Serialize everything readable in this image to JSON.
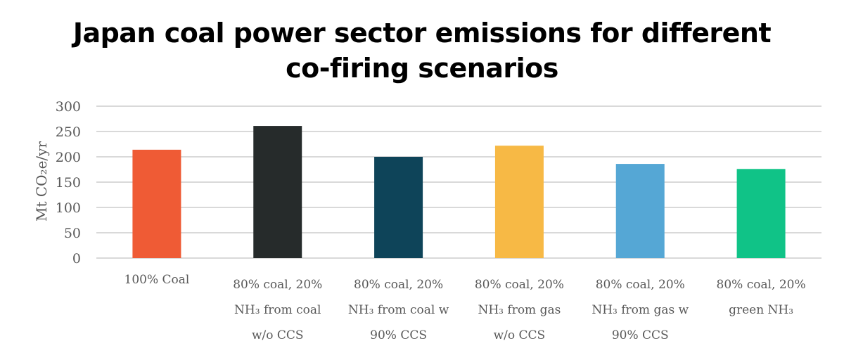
{
  "chart_data": {
    "type": "bar",
    "title": "Japan coal power sector emissions for different co-firing scenarios",
    "title_lines": [
      "Japan coal power sector emissions for different",
      "co-firing scenarios"
    ],
    "xlabel": "",
    "ylabel": "Mt CO₂e/yr",
    "ylim": [
      0,
      300
    ],
    "yticks": [
      0,
      50,
      100,
      150,
      200,
      250,
      300
    ],
    "grid": true,
    "categories": [
      "100% Coal",
      "80% coal, 20% NH₃ from coal w/o CCS",
      "80% coal, 20% NH₃ from coal w 90% CCS",
      "80% coal, 20% NH₃ from gas w/o CCS",
      "80% coal, 20% NH₃ from gas w 90% CCS",
      "80% coal, 20% green NH₃"
    ],
    "category_lines": [
      [
        "100% Coal"
      ],
      [
        "80% coal, 20%",
        "NH₃ from coal",
        "w/o CCS"
      ],
      [
        "80% coal, 20%",
        "NH₃ from coal w",
        "90% CCS"
      ],
      [
        "80% coal, 20%",
        "NH₃ from gas",
        "w/o CCS"
      ],
      [
        "80% coal, 20%",
        "NH₃ from gas w",
        "90% CCS"
      ],
      [
        "80% coal, 20%",
        "green NH₃"
      ]
    ],
    "values": [
      214,
      261,
      200,
      222,
      186,
      176
    ],
    "colors": [
      "#EF5B35",
      "#262B2B",
      "#0E4459",
      "#F7B945",
      "#55A7D5",
      "#10C387"
    ]
  }
}
